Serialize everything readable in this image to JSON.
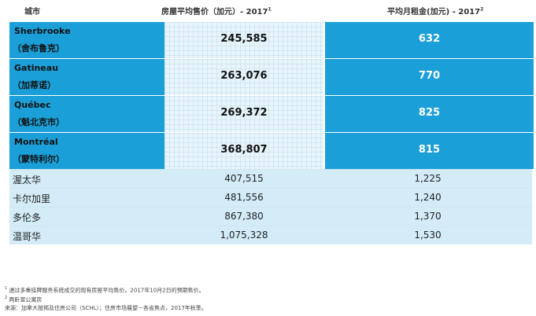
{
  "header": {
    "city": "城市",
    "price": "房屋平均售价（加元）- 2017",
    "price_sup": "1",
    "rent": "平均月租金(加元) - 2017",
    "rent_sup": "2"
  },
  "rows": [
    {
      "city_en": "Sherbrooke",
      "city_zh": "（舍布鲁克）",
      "price": "245,585",
      "rent": "632"
    },
    {
      "city_en": "Gatineau",
      "city_zh": "（加蒂诺）",
      "price": "263,076",
      "rent": "770"
    },
    {
      "city_en": "Québec",
      "city_zh": "（魁北克市）",
      "price": "269,372",
      "rent": "825"
    },
    {
      "city_en": "Montréal",
      "city_zh": "（蒙特利尔）",
      "price": "368,807",
      "rent": "815"
    },
    {
      "city": "渥太华",
      "price": "407,515",
      "rent": "1,225"
    },
    {
      "city": "卡尔加里",
      "price": "481,556",
      "rent": "1,240"
    },
    {
      "city": "多伦多",
      "price": "867,380",
      "rent": "1,370"
    },
    {
      "city": "温哥华",
      "price": "1,075,328",
      "rent": "1,530"
    }
  ],
  "notes": {
    "n1_mark": "1",
    "n1": "通过多重挂牌服务系统成交的现有房屋平均售价。2017年10月2日的预期售价。",
    "n2_mark": "2",
    "n2": "两卧室公寓房",
    "source": "来源：加拿大按揭及住房公司（SCHL）；住房市场展望－各省焦点，2017年秋季。"
  }
}
